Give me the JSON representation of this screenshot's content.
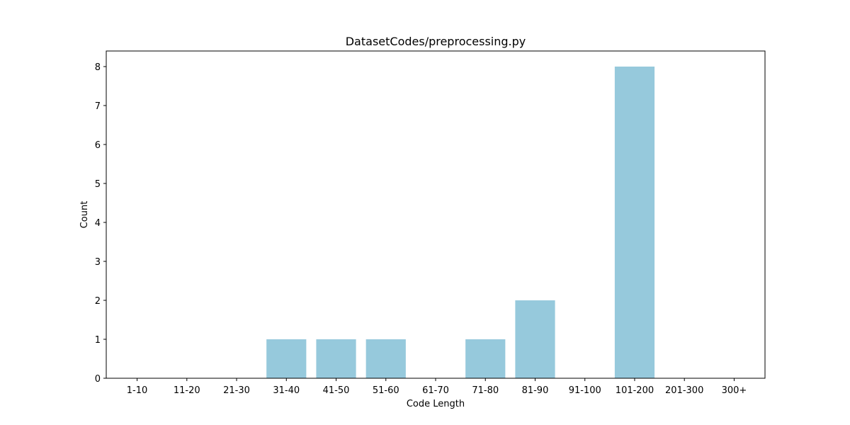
{
  "chart_data": {
    "type": "bar",
    "title": "DatasetCodes/preprocessing.py",
    "xlabel": "Code Length",
    "ylabel": "Count",
    "categories": [
      "1-10",
      "11-20",
      "21-30",
      "31-40",
      "41-50",
      "51-60",
      "61-70",
      "71-80",
      "81-90",
      "91-100",
      "101-200",
      "201-300",
      "300+"
    ],
    "values": [
      0,
      0,
      0,
      1,
      1,
      1,
      0,
      1,
      2,
      0,
      8,
      0,
      0
    ],
    "ylim": [
      0,
      8.4
    ],
    "yticks": [
      0,
      1,
      2,
      3,
      4,
      5,
      6,
      7,
      8
    ],
    "bar_color": "#96c9dc",
    "grid": false,
    "legend": "none"
  }
}
